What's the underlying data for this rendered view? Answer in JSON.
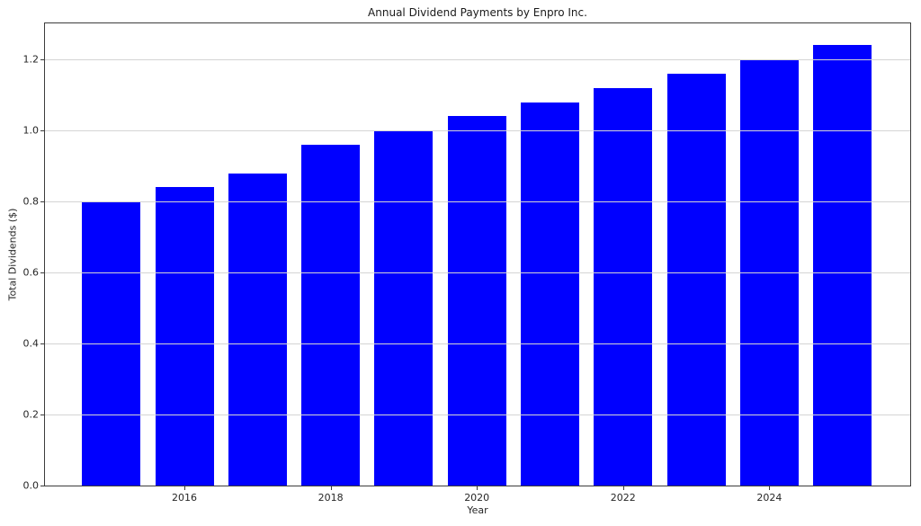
{
  "chart_data": {
    "type": "bar",
    "title": "Annual Dividend Payments by Enpro Inc.",
    "xlabel": "Year",
    "ylabel": "Total Dividends ($)",
    "categories": [
      2015,
      2016,
      2017,
      2018,
      2019,
      2020,
      2021,
      2022,
      2023,
      2024,
      2025
    ],
    "values": [
      0.8,
      0.84,
      0.88,
      0.96,
      1.0,
      1.04,
      1.08,
      1.12,
      1.16,
      1.2,
      1.24
    ],
    "x_tick_labels": [
      "2016",
      "2018",
      "2020",
      "2022",
      "2024"
    ],
    "x_tick_values": [
      2016,
      2018,
      2020,
      2022,
      2024
    ],
    "y_tick_labels": [
      "0.0",
      "0.2",
      "0.4",
      "0.6",
      "0.8",
      "1.0",
      "1.2"
    ],
    "y_tick_values": [
      0.0,
      0.2,
      0.4,
      0.6,
      0.8,
      1.0,
      1.2
    ],
    "ylim": [
      0,
      1.302
    ],
    "grid": true,
    "legend_position": "none",
    "bar_color": "#0000ff",
    "grid_color": "#d4d4d4",
    "axis_color": "#3c3c3c",
    "background_color": "#ffffff"
  }
}
